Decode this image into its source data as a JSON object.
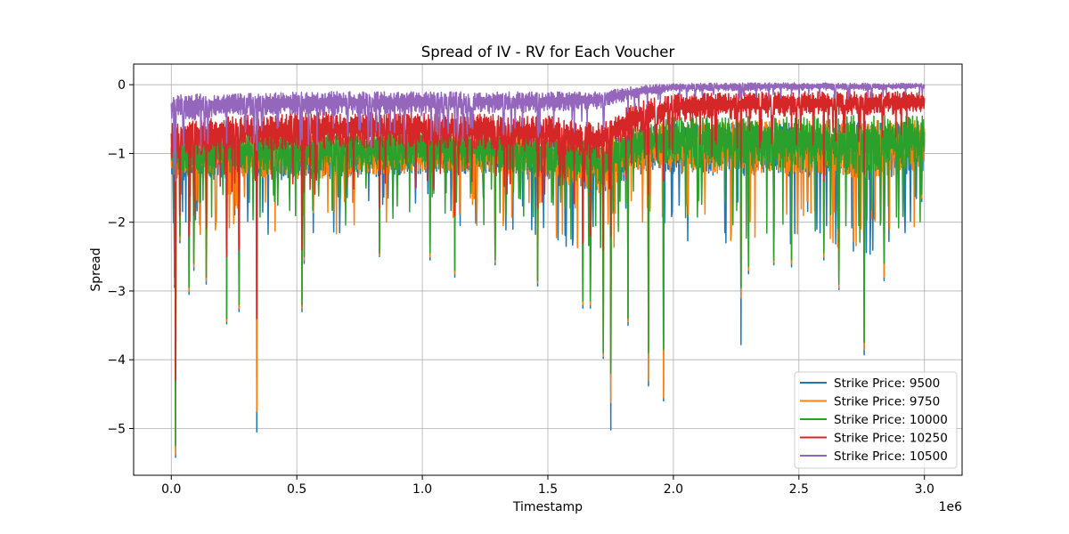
{
  "chart_data": {
    "type": "line",
    "title": "Spread of IV - RV for Each Voucher",
    "xlabel": "Timestamp",
    "ylabel": "Spread",
    "x_offset_label": "1e6",
    "xlim": [
      -0.15,
      3.15
    ],
    "ylim": [
      -5.68,
      0.3
    ],
    "x_ticks": [
      0.0,
      0.5,
      1.0,
      1.5,
      2.0,
      2.5,
      3.0
    ],
    "x_tick_labels": [
      "0.0",
      "0.5",
      "1.0",
      "1.5",
      "2.0",
      "2.5",
      "3.0"
    ],
    "y_ticks": [
      0,
      -1,
      -2,
      -3,
      -4,
      -5
    ],
    "y_tick_labels": [
      "0",
      "−1",
      "−2",
      "−3",
      "−4",
      "−5"
    ],
    "grid": true,
    "legend_position": "lower-right",
    "x_range": [
      0.0,
      3.0
    ],
    "series": [
      {
        "name": "Strike Price: 9500",
        "color": "#1f77b4",
        "band": [
          [
            0.0,
            -1.45,
            -0.8
          ],
          [
            0.25,
            -1.35,
            -0.75
          ],
          [
            0.5,
            -1.4,
            -0.75
          ],
          [
            1.0,
            -1.3,
            -0.7
          ],
          [
            1.5,
            -1.4,
            -0.75
          ],
          [
            1.7,
            -1.6,
            -0.85
          ],
          [
            1.9,
            -1.25,
            -0.6
          ],
          [
            2.0,
            -1.3,
            -0.55
          ],
          [
            2.5,
            -1.35,
            -0.55
          ],
          [
            2.8,
            -1.4,
            -0.55
          ],
          [
            3.0,
            -1.25,
            -0.55
          ]
        ],
        "spikes": [
          [
            0.012,
            -2.95
          ],
          [
            0.018,
            -5.42
          ],
          [
            0.035,
            -2.3
          ],
          [
            0.07,
            -3.05
          ],
          [
            0.09,
            -2.7
          ],
          [
            0.14,
            -2.9
          ],
          [
            0.22,
            -3.48
          ],
          [
            0.27,
            -3.3
          ],
          [
            0.34,
            -5.05
          ],
          [
            0.52,
            -3.3
          ],
          [
            0.53,
            -2.6
          ],
          [
            0.83,
            -2.5
          ],
          [
            1.03,
            -2.55
          ],
          [
            1.13,
            -2.8
          ],
          [
            1.29,
            -2.62
          ],
          [
            1.46,
            -2.93
          ],
          [
            1.64,
            -3.25
          ],
          [
            1.67,
            -3.25
          ],
          [
            1.72,
            -3.98
          ],
          [
            1.75,
            -5.02
          ],
          [
            1.82,
            -3.5
          ],
          [
            1.9,
            -4.38
          ],
          [
            1.96,
            -4.6
          ],
          [
            2.27,
            -3.78
          ],
          [
            2.3,
            -2.75
          ],
          [
            2.4,
            -2.62
          ],
          [
            2.47,
            -2.65
          ],
          [
            2.6,
            -2.55
          ],
          [
            2.66,
            -2.98
          ],
          [
            2.76,
            -3.93
          ],
          [
            2.84,
            -2.85
          ],
          [
            2.99,
            -1.7
          ]
        ]
      },
      {
        "name": "Strike Price: 9750",
        "color": "#ff7f0e",
        "band": [
          [
            0.0,
            -1.42,
            -0.78
          ],
          [
            0.25,
            -1.33,
            -0.73
          ],
          [
            0.5,
            -1.38,
            -0.73
          ],
          [
            1.0,
            -1.28,
            -0.68
          ],
          [
            1.5,
            -1.38,
            -0.73
          ],
          [
            1.7,
            -1.58,
            -0.83
          ],
          [
            1.9,
            -1.22,
            -0.58
          ],
          [
            2.0,
            -1.28,
            -0.52
          ],
          [
            2.5,
            -1.32,
            -0.52
          ],
          [
            2.8,
            -1.38,
            -0.52
          ],
          [
            3.0,
            -1.22,
            -0.52
          ]
        ],
        "spikes": [
          [
            0.012,
            -2.9
          ],
          [
            0.018,
            -5.38
          ],
          [
            0.035,
            -2.25
          ],
          [
            0.07,
            -3.0
          ],
          [
            0.09,
            -2.65
          ],
          [
            0.14,
            -2.85
          ],
          [
            0.22,
            -3.44
          ],
          [
            0.27,
            -3.25
          ],
          [
            0.34,
            -4.75
          ],
          [
            0.52,
            -3.25
          ],
          [
            0.53,
            -2.55
          ],
          [
            0.83,
            -2.48
          ],
          [
            1.03,
            -2.5
          ],
          [
            1.13,
            -2.75
          ],
          [
            1.29,
            -2.58
          ],
          [
            1.46,
            -2.88
          ],
          [
            1.64,
            -3.2
          ],
          [
            1.67,
            -3.2
          ],
          [
            1.72,
            -3.95
          ],
          [
            1.75,
            -4.62
          ],
          [
            1.82,
            -3.45
          ],
          [
            1.9,
            -4.3
          ],
          [
            1.96,
            -4.55
          ],
          [
            2.27,
            -3.1
          ],
          [
            2.3,
            -2.7
          ],
          [
            2.4,
            -2.58
          ],
          [
            2.47,
            -2.6
          ],
          [
            2.6,
            -2.5
          ],
          [
            2.66,
            -2.95
          ],
          [
            2.76,
            -3.85
          ],
          [
            2.84,
            -2.8
          ],
          [
            2.99,
            -1.65
          ]
        ]
      },
      {
        "name": "Strike Price: 10000",
        "color": "#2ca02c",
        "band": [
          [
            0.0,
            -1.35,
            -0.75
          ],
          [
            0.25,
            -1.28,
            -0.7
          ],
          [
            0.5,
            -1.32,
            -0.7
          ],
          [
            1.0,
            -1.22,
            -0.65
          ],
          [
            1.5,
            -1.32,
            -0.7
          ],
          [
            1.7,
            -1.5,
            -0.8
          ],
          [
            1.9,
            -1.15,
            -0.55
          ],
          [
            2.0,
            -1.2,
            -0.45
          ],
          [
            2.5,
            -1.25,
            -0.45
          ],
          [
            2.8,
            -1.3,
            -0.45
          ],
          [
            3.0,
            -1.15,
            -0.45
          ]
        ],
        "spikes": [
          [
            0.012,
            -2.8
          ],
          [
            0.018,
            -5.25
          ],
          [
            0.035,
            -2.2
          ],
          [
            0.07,
            -2.95
          ],
          [
            0.09,
            -2.6
          ],
          [
            0.14,
            -2.8
          ],
          [
            0.22,
            -3.4
          ],
          [
            0.27,
            -3.2
          ],
          [
            0.34,
            -3.4
          ],
          [
            0.52,
            -3.2
          ],
          [
            0.53,
            -2.5
          ],
          [
            0.83,
            -2.45
          ],
          [
            1.03,
            -2.45
          ],
          [
            1.13,
            -2.7
          ],
          [
            1.29,
            -2.55
          ],
          [
            1.46,
            -2.85
          ],
          [
            1.64,
            -3.15
          ],
          [
            1.67,
            -3.15
          ],
          [
            1.72,
            -3.9
          ],
          [
            1.75,
            -4.2
          ],
          [
            1.82,
            -3.4
          ],
          [
            1.9,
            -3.9
          ],
          [
            1.96,
            -3.85
          ],
          [
            2.27,
            -2.95
          ],
          [
            2.3,
            -2.65
          ],
          [
            2.4,
            -2.55
          ],
          [
            2.47,
            -2.55
          ],
          [
            2.6,
            -2.45
          ],
          [
            2.66,
            -2.9
          ],
          [
            2.76,
            -3.75
          ],
          [
            2.84,
            -2.6
          ],
          [
            2.99,
            -1.6
          ]
        ]
      },
      {
        "name": "Strike Price: 10250",
        "color": "#d62728",
        "band": [
          [
            0.0,
            -1.1,
            -0.55
          ],
          [
            0.25,
            -0.95,
            -0.45
          ],
          [
            0.5,
            -0.95,
            -0.4
          ],
          [
            1.0,
            -0.9,
            -0.4
          ],
          [
            1.5,
            -1.0,
            -0.45
          ],
          [
            1.7,
            -1.1,
            -0.55
          ],
          [
            1.85,
            -0.75,
            -0.25
          ],
          [
            2.0,
            -0.55,
            -0.12
          ],
          [
            2.5,
            -0.45,
            -0.1
          ],
          [
            2.8,
            -0.45,
            -0.1
          ],
          [
            3.0,
            -0.4,
            -0.1
          ]
        ],
        "spikes": [
          [
            0.012,
            -1.8
          ],
          [
            0.018,
            -4.3
          ],
          [
            0.035,
            -1.9
          ],
          [
            0.07,
            -2.2
          ],
          [
            0.09,
            -1.9
          ],
          [
            0.14,
            -2.1
          ],
          [
            0.22,
            -2.5
          ],
          [
            0.27,
            -2.4
          ],
          [
            0.34,
            -3.4
          ],
          [
            0.52,
            -2.4
          ],
          [
            0.83,
            -1.8
          ],
          [
            1.13,
            -1.9
          ],
          [
            1.46,
            -1.8
          ],
          [
            1.64,
            -2.3
          ],
          [
            1.67,
            -2.2
          ],
          [
            1.72,
            -2.4
          ],
          [
            1.75,
            -2.2
          ],
          [
            1.9,
            -1.6
          ],
          [
            1.96,
            -1.4
          ],
          [
            2.27,
            -1.2
          ],
          [
            2.6,
            -1.4
          ],
          [
            2.76,
            -1.3
          ]
        ]
      },
      {
        "name": "Strike Price: 10500",
        "color": "#9467bd",
        "band": [
          [
            0.0,
            -0.55,
            -0.15
          ],
          [
            0.25,
            -0.45,
            -0.12
          ],
          [
            0.5,
            -0.45,
            -0.1
          ],
          [
            1.0,
            -0.45,
            -0.1
          ],
          [
            1.5,
            -0.4,
            -0.1
          ],
          [
            1.7,
            -0.35,
            -0.1
          ],
          [
            1.85,
            -0.2,
            -0.02
          ],
          [
            2.0,
            -0.1,
            0.02
          ],
          [
            2.5,
            -0.08,
            0.03
          ],
          [
            2.8,
            -0.08,
            0.02
          ],
          [
            3.0,
            -0.05,
            0.02
          ]
        ],
        "spikes": [
          [
            0.01,
            -1.3
          ],
          [
            0.018,
            -1.4
          ],
          [
            0.05,
            -0.9
          ],
          [
            0.22,
            -0.85
          ],
          [
            0.34,
            -0.95
          ],
          [
            0.52,
            -0.8
          ],
          [
            0.83,
            -0.75
          ],
          [
            1.13,
            -0.7
          ],
          [
            1.46,
            -0.7
          ],
          [
            1.72,
            -0.6
          ],
          [
            1.82,
            -0.4
          ]
        ]
      }
    ]
  }
}
